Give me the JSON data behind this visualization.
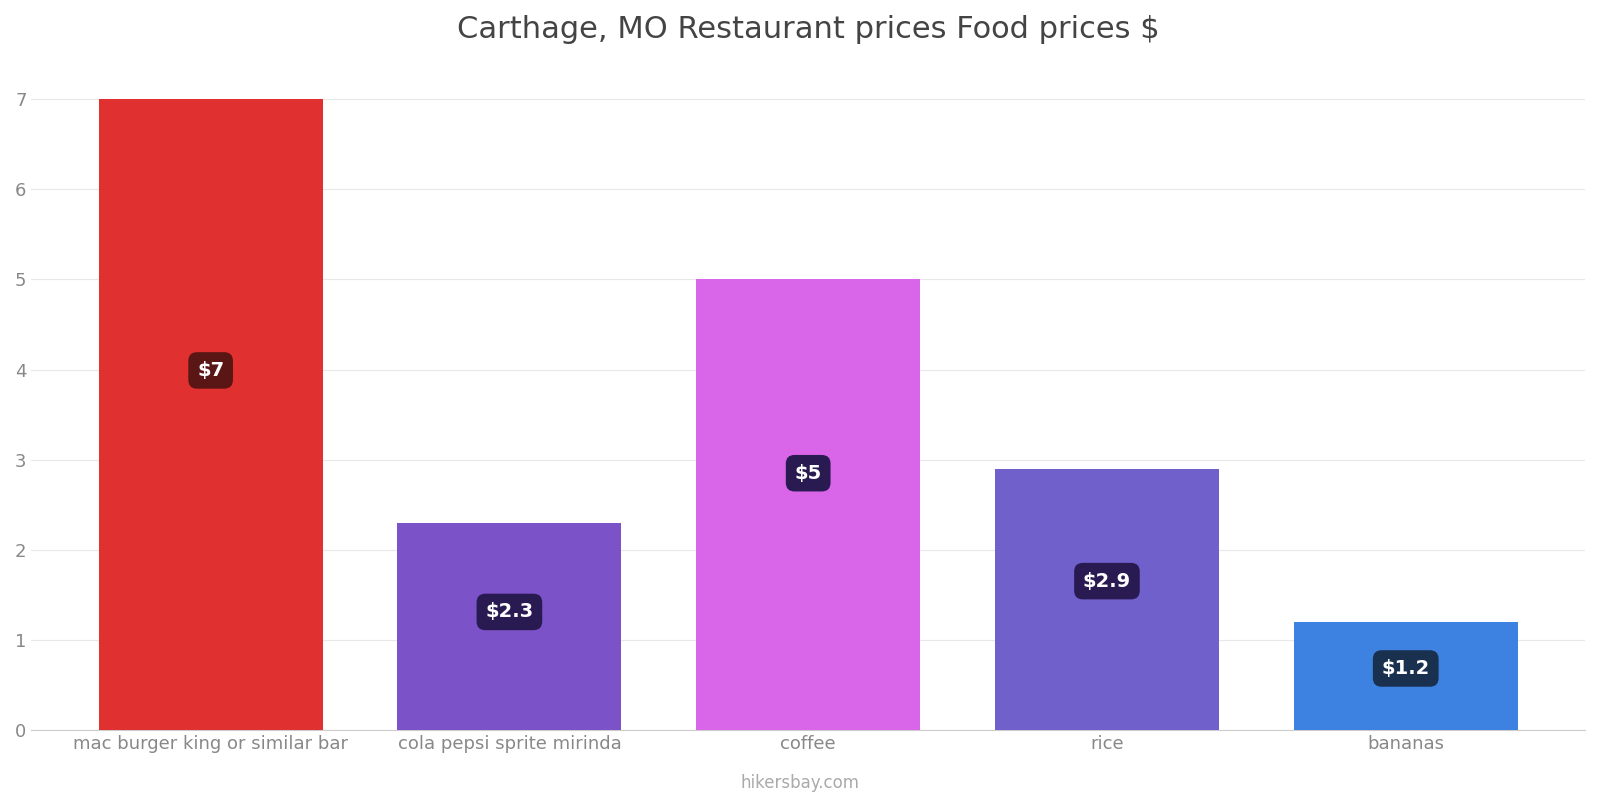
{
  "title": "Carthage, MO Restaurant prices Food prices $",
  "categories": [
    "mac burger king or similar bar",
    "cola pepsi sprite mirinda",
    "coffee",
    "rice",
    "bananas"
  ],
  "values": [
    7.0,
    2.3,
    5.0,
    2.9,
    1.2
  ],
  "bar_colors": [
    "#e03030",
    "#7b52c8",
    "#d966e8",
    "#7060cc",
    "#3d82e0"
  ],
  "label_texts": [
    "$7",
    "$2.3",
    "$5",
    "$2.9",
    "$1.2"
  ],
  "label_box_colors": [
    "#5a1515",
    "#2a1a52",
    "#2a1a52",
    "#2a1a52",
    "#1a304f"
  ],
  "ylabel_values": [
    0,
    1,
    2,
    3,
    4,
    5,
    6,
    7
  ],
  "ylim": [
    0,
    7.4
  ],
  "title_fontsize": 22,
  "background_color": "#ffffff",
  "watermark": "hikersbay.com",
  "grid_color": "#e8e8e8",
  "bar_width": 0.75,
  "label_fontsize": 14
}
